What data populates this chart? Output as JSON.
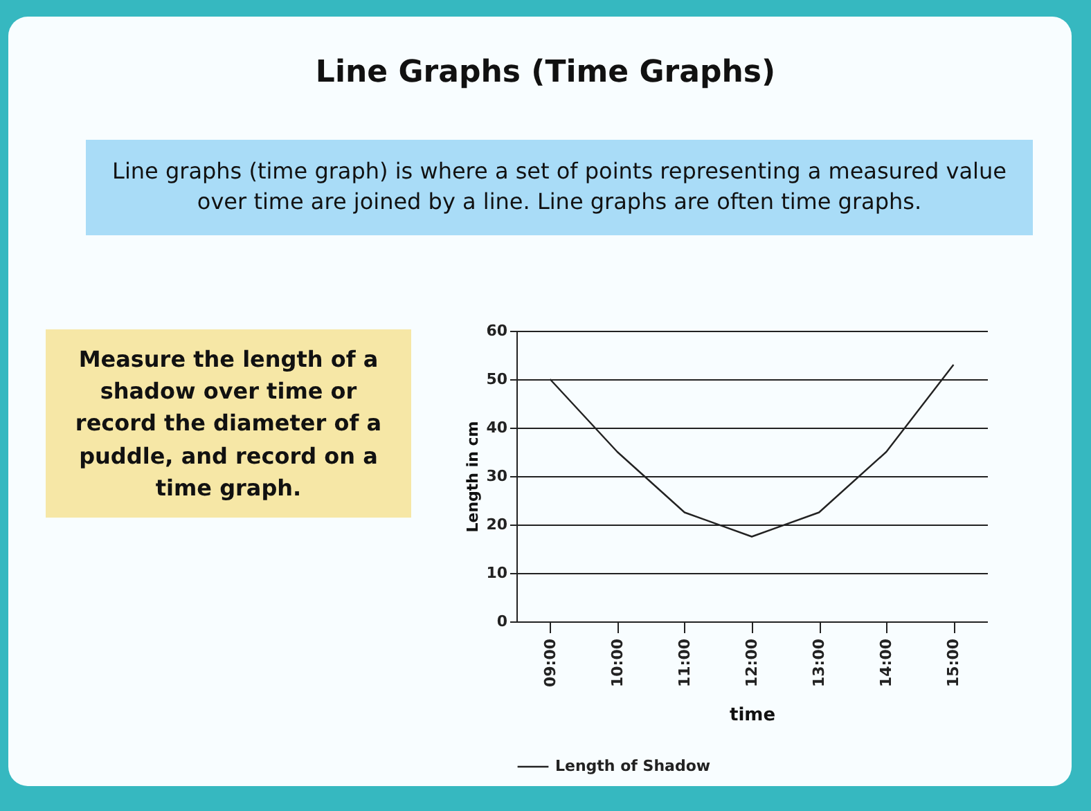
{
  "chart_data": {
    "type": "line",
    "title": "Line Graphs (Time Graphs)",
    "annotations": [
      "Line graphs (time graph) is where a set of points representing a measured value over time are joined by a line. Line graphs are often time graphs.",
      "Measure the length of a shadow over time or record the diameter of a puddle, and record on a time graph."
    ],
    "xlabel": "time",
    "ylabel": "Length in cm",
    "categories": [
      "09:00",
      "10:00",
      "11:00",
      "12:00",
      "13:00",
      "14:00",
      "15:00"
    ],
    "series": [
      {
        "name": "Length of Shadow",
        "color": "#222222",
        "values": [
          50,
          35,
          22.5,
          17.5,
          22.5,
          35,
          53
        ]
      }
    ],
    "ylim": [
      0,
      60
    ],
    "yticks": [
      0,
      10,
      20,
      30,
      40,
      50,
      60
    ],
    "grid": "y",
    "legend": "bottom"
  }
}
